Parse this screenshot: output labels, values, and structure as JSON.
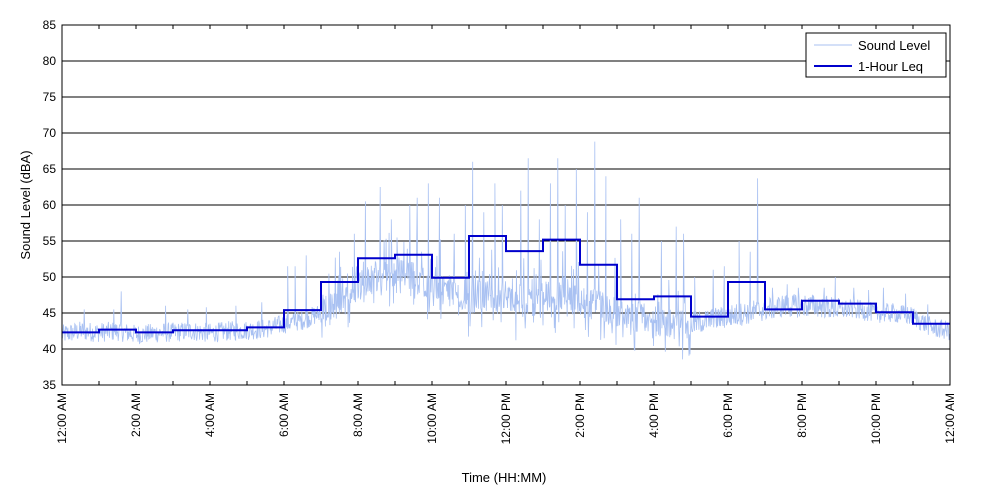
{
  "chart_data": {
    "type": "line",
    "title": "",
    "xlabel": "Time (HH:MM)",
    "ylabel": "Sound Level (dBA)",
    "ylim": [
      35,
      85
    ],
    "xlim": [
      0,
      24
    ],
    "yticks": [
      35,
      40,
      45,
      50,
      55,
      60,
      65,
      70,
      75,
      80,
      85
    ],
    "xticks": [
      0,
      2,
      4,
      6,
      8,
      10,
      12,
      14,
      16,
      18,
      20,
      22,
      24
    ],
    "xtick_labels": [
      "12:00 AM",
      "2:00 AM",
      "4:00 AM",
      "6:00 AM",
      "8:00 AM",
      "10:00 AM",
      "12:00 PM",
      "2:00 PM",
      "4:00 PM",
      "6:00 PM",
      "8:00 PM",
      "10:00 PM",
      "12:00 AM"
    ],
    "grid": "horizontal",
    "legend_position": "top-right",
    "series": [
      {
        "name": "Sound Level",
        "color": "#a9c1f2",
        "style": "noisy",
        "x": [
          0,
          0.5,
          1,
          1.5,
          2,
          2.5,
          3,
          3.5,
          4,
          4.5,
          5,
          5.5,
          6,
          6.5,
          7,
          7.5,
          8,
          8.5,
          9,
          9.5,
          10,
          10.5,
          11,
          11.5,
          12,
          12.5,
          13,
          13.5,
          14,
          14.5,
          15,
          15.5,
          16,
          16.5,
          17,
          17.5,
          18,
          18.5,
          19,
          19.5,
          20,
          20.5,
          21,
          21.5,
          22,
          22.5,
          23,
          23.5,
          24
        ],
        "values": [
          42,
          42.5,
          42.3,
          42.5,
          42,
          42.2,
          42.3,
          42.5,
          42.2,
          42.5,
          42.6,
          42.8,
          43.5,
          44,
          45,
          46,
          49,
          50,
          50.5,
          50,
          49,
          48,
          47,
          47.5,
          47,
          46.5,
          47,
          47.5,
          47,
          46,
          45,
          44.5,
          44,
          43.5,
          43.5,
          44,
          44.5,
          45,
          45.5,
          46,
          46,
          46,
          45.5,
          45.5,
          45,
          45,
          44.5,
          43,
          42.5
        ],
        "peaks": [
          [
            0.6,
            45.5
          ],
          [
            1.4,
            45.5
          ],
          [
            1.6,
            48
          ],
          [
            2.8,
            46
          ],
          [
            3.4,
            45.5
          ],
          [
            3.9,
            45.8
          ],
          [
            4.7,
            46
          ],
          [
            5.4,
            46.5
          ],
          [
            6.1,
            51.5
          ],
          [
            6.3,
            51.5
          ],
          [
            6.6,
            53
          ],
          [
            7.5,
            53.5
          ],
          [
            7.9,
            56
          ],
          [
            8.2,
            60.5
          ],
          [
            8.6,
            62.5
          ],
          [
            8.9,
            58
          ],
          [
            9.4,
            60
          ],
          [
            9.6,
            61
          ],
          [
            9.9,
            63
          ],
          [
            10.2,
            61
          ],
          [
            10.6,
            56
          ],
          [
            10.9,
            60
          ],
          [
            11.1,
            66
          ],
          [
            11.4,
            59
          ],
          [
            11.7,
            63
          ],
          [
            11.9,
            60
          ],
          [
            12.4,
            62
          ],
          [
            12.6,
            66.5
          ],
          [
            12.9,
            58
          ],
          [
            13.2,
            63
          ],
          [
            13.4,
            66.5
          ],
          [
            13.6,
            60
          ],
          [
            13.9,
            65
          ],
          [
            14.2,
            59
          ],
          [
            14.4,
            68.8
          ],
          [
            14.7,
            64
          ],
          [
            15.1,
            58
          ],
          [
            15.4,
            56
          ],
          [
            15.6,
            61
          ],
          [
            16.2,
            55
          ],
          [
            16.6,
            57
          ],
          [
            16.8,
            56
          ],
          [
            17.1,
            50
          ],
          [
            17.6,
            51
          ],
          [
            17.9,
            51.5
          ],
          [
            18.3,
            55
          ],
          [
            18.6,
            53.5
          ],
          [
            18.8,
            63.7
          ],
          [
            19.2,
            48.5
          ],
          [
            19.6,
            49
          ],
          [
            19.9,
            48.5
          ],
          [
            20.6,
            48.5
          ],
          [
            20.9,
            50
          ],
          [
            21.4,
            48.5
          ],
          [
            21.8,
            48.2
          ],
          [
            22.2,
            48.5
          ],
          [
            22.8,
            47.7
          ],
          [
            23.4,
            46.2
          ]
        ]
      },
      {
        "name": "1-Hour Leq",
        "color": "#0000cc",
        "style": "step",
        "step_width_hours": 1,
        "values": [
          42.3,
          42.7,
          42.3,
          42.6,
          42.6,
          43.0,
          45.4,
          49.3,
          52.6,
          53.1,
          49.9,
          55.7,
          53.6,
          55.2,
          51.7,
          46.9,
          47.3,
          44.5,
          49.3,
          45.5,
          46.7,
          46.3,
          45.1,
          43.5
        ]
      }
    ]
  }
}
